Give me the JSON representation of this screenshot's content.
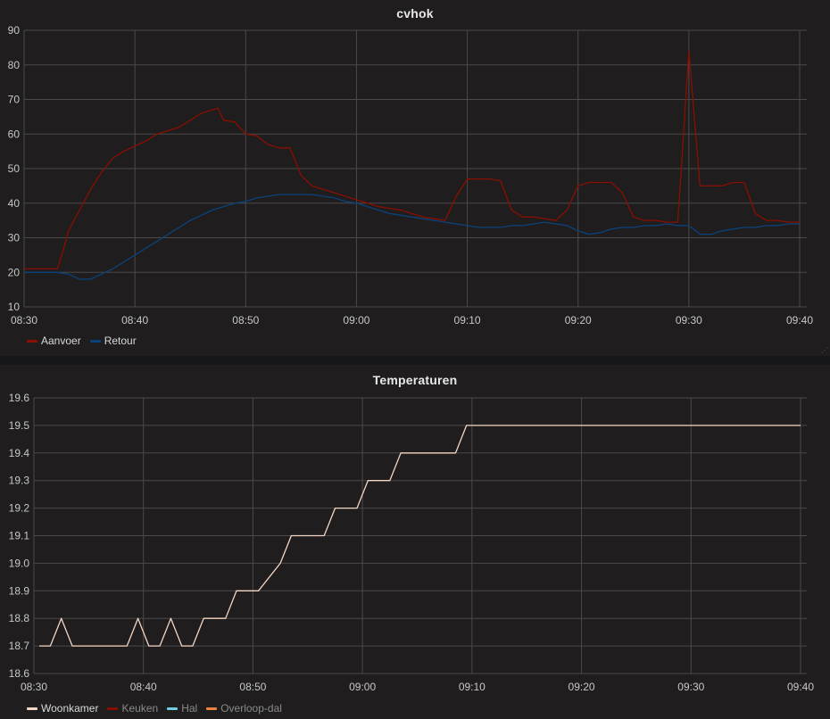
{
  "colors": {
    "aanvoer": "#890f02",
    "retour": "#0a437c",
    "woonkamer": "#f4d6c4",
    "keuken": "#890f02",
    "hal": "#6ed0e0",
    "overloop": "#ef843c",
    "grid": "#4a4a4a",
    "tick": "#c8c8c8"
  },
  "chart_data": [
    {
      "type": "line",
      "title": "cvhok",
      "ylim": [
        10,
        90
      ],
      "yticks": [
        10,
        20,
        30,
        40,
        50,
        60,
        70,
        80,
        90
      ],
      "xlim": [
        "08:30",
        "09:40"
      ],
      "xticks": [
        "08:30",
        "08:40",
        "08:50",
        "09:00",
        "09:10",
        "09:20",
        "09:30",
        "09:40"
      ],
      "grid": true,
      "legend": "bottom-left",
      "series": [
        {
          "name": "Aanvoer",
          "color": "#890f02",
          "x": [
            "08:30",
            "08:32",
            "08:33",
            "08:33:30",
            "08:34",
            "08:35",
            "08:36",
            "08:37",
            "08:38",
            "08:39",
            "08:40",
            "08:41",
            "08:42",
            "08:43",
            "08:44",
            "08:45",
            "08:46",
            "08:47",
            "08:47:30",
            "08:48",
            "08:49",
            "08:50",
            "08:51",
            "08:52",
            "08:53",
            "08:54",
            "08:55",
            "08:56",
            "08:57",
            "08:58",
            "08:59",
            "09:00",
            "09:01",
            "09:02",
            "09:03",
            "09:04",
            "09:05",
            "09:06",
            "09:07",
            "09:08",
            "09:09",
            "09:10",
            "09:11",
            "09:12",
            "09:13",
            "09:14",
            "09:15",
            "09:16",
            "09:17",
            "09:18",
            "09:19",
            "09:20",
            "09:21",
            "09:22",
            "09:23",
            "09:24",
            "09:25",
            "09:26",
            "09:27",
            "09:28",
            "09:29",
            "09:30",
            "09:31",
            "09:32",
            "09:33",
            "09:34",
            "09:35",
            "09:36",
            "09:37",
            "09:38",
            "09:39",
            "09:40"
          ],
          "values": [
            21,
            21,
            21,
            26,
            32,
            38,
            44,
            49,
            53,
            55,
            56.5,
            58,
            60,
            61,
            62,
            64,
            66,
            67,
            67.5,
            64,
            63.5,
            60,
            59.5,
            57,
            56,
            56,
            48,
            45,
            44,
            43,
            42,
            41,
            40,
            39,
            38.5,
            38,
            37,
            36,
            35.5,
            35,
            42,
            47,
            47,
            47,
            46.5,
            38,
            36,
            36,
            35.5,
            35,
            38,
            45,
            46,
            46,
            46,
            43,
            36,
            35,
            35,
            34.5,
            34.5,
            84,
            45,
            45,
            45,
            46,
            46,
            37,
            35,
            35,
            34.5,
            34.5
          ]
        },
        {
          "name": "Retour",
          "color": "#0a437c",
          "x": [
            "08:30",
            "08:32",
            "08:33",
            "08:34",
            "08:35",
            "08:36",
            "08:37",
            "08:38",
            "08:39",
            "08:40",
            "08:41",
            "08:42",
            "08:43",
            "08:44",
            "08:45",
            "08:46",
            "08:47",
            "08:48",
            "08:49",
            "08:50",
            "08:51",
            "08:52",
            "08:53",
            "08:54",
            "08:55",
            "08:56",
            "08:57",
            "08:58",
            "08:59",
            "09:00",
            "09:01",
            "09:02",
            "09:03",
            "09:04",
            "09:05",
            "09:06",
            "09:07",
            "09:08",
            "09:09",
            "09:10",
            "09:11",
            "09:12",
            "09:13",
            "09:14",
            "09:15",
            "09:16",
            "09:17",
            "09:18",
            "09:19",
            "09:20",
            "09:21",
            "09:22",
            "09:23",
            "09:24",
            "09:25",
            "09:26",
            "09:27",
            "09:28",
            "09:29",
            "09:30",
            "09:31",
            "09:32",
            "09:33",
            "09:34",
            "09:35",
            "09:36",
            "09:37",
            "09:38",
            "09:39",
            "09:40"
          ],
          "values": [
            20,
            20,
            20,
            19.5,
            18,
            18,
            19.5,
            21,
            23,
            25,
            27,
            29,
            31,
            33,
            35,
            36.5,
            38,
            39,
            40,
            40.5,
            41.5,
            42,
            42.5,
            42.5,
            42.5,
            42.5,
            42,
            41.5,
            40.5,
            40,
            39,
            38,
            37,
            36.5,
            36,
            35.5,
            35,
            34.5,
            34,
            33.5,
            33,
            33,
            33,
            33.5,
            33.5,
            34,
            34.5,
            34,
            33.5,
            32,
            31,
            31.5,
            32.5,
            33,
            33,
            33.5,
            33.5,
            34,
            33.5,
            33.5,
            31,
            31,
            32,
            32.5,
            33,
            33,
            33.5,
            33.5,
            34,
            34
          ]
        }
      ]
    },
    {
      "type": "line",
      "title": "Temperaturen",
      "ylim": [
        18.6,
        19.6
      ],
      "yticks": [
        "18.6",
        "18.7",
        "18.8",
        "18.9",
        "19.0",
        "19.1",
        "19.2",
        "19.3",
        "19.4",
        "19.5",
        "19.6"
      ],
      "xlim": [
        "08:30",
        "09:40"
      ],
      "xticks": [
        "08:30",
        "08:40",
        "08:50",
        "09:00",
        "09:10",
        "09:20",
        "09:30",
        "09:40"
      ],
      "grid": true,
      "legend": "bottom-left",
      "series": [
        {
          "name": "Woonkamer",
          "color": "#f4d6c4",
          "x": [
            "08:30:30",
            "08:31:30",
            "08:32:30",
            "08:33:30",
            "08:38:30",
            "08:39:30",
            "08:40:30",
            "08:41:30",
            "08:42:30",
            "08:43:30",
            "08:44:30",
            "08:45:30",
            "08:47:30",
            "08:48:30",
            "08:50:30",
            "08:52:30",
            "08:53:30",
            "08:56:30",
            "08:57:30",
            "08:59:30",
            "09:00:30",
            "09:02:30",
            "09:03:30",
            "09:08:30",
            "09:09:30",
            "09:40"
          ],
          "values": [
            18.7,
            18.7,
            18.8,
            18.7,
            18.7,
            18.8,
            18.7,
            18.7,
            18.8,
            18.7,
            18.7,
            18.8,
            18.8,
            18.9,
            18.9,
            19.0,
            19.1,
            19.1,
            19.2,
            19.2,
            19.3,
            19.3,
            19.4,
            19.4,
            19.5,
            19.5
          ]
        },
        {
          "name": "Keuken",
          "color": "#890f02",
          "x": [],
          "values": []
        },
        {
          "name": "Hal",
          "color": "#6ed0e0",
          "x": [],
          "values": []
        },
        {
          "name": "Overloop-dal",
          "color": "#ef843c",
          "x": [],
          "values": []
        }
      ]
    }
  ]
}
